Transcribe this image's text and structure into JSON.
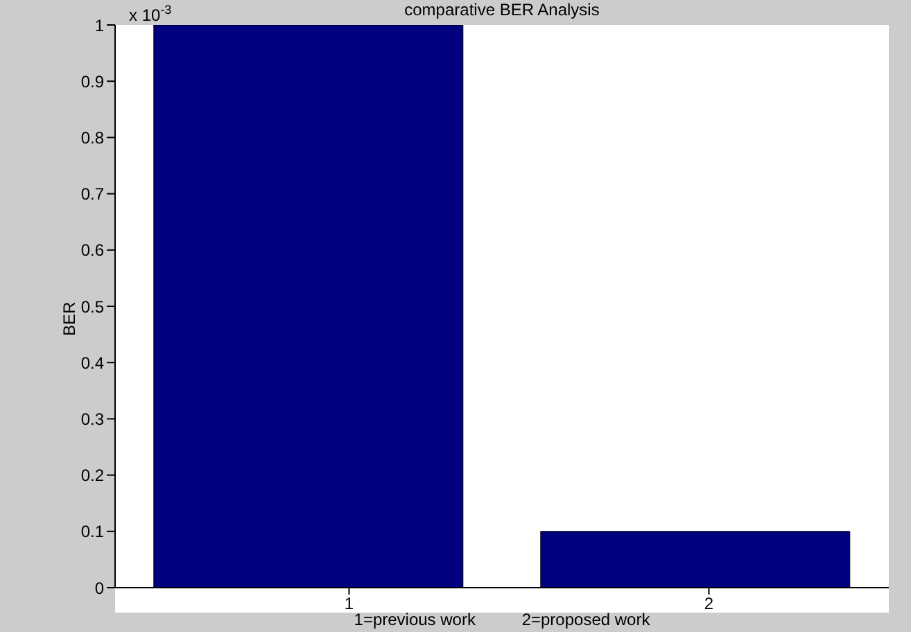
{
  "chart_data": {
    "type": "bar",
    "title": "comparative BER Analysis",
    "xlabel": "1=previous work          2=proposed work",
    "ylabel": "BER",
    "categories": [
      "1",
      "2"
    ],
    "values": [
      1,
      0.1
    ],
    "color": "#00007f",
    "ylim": [
      0,
      1
    ],
    "yticks": [
      0,
      0.1,
      0.2,
      0.3,
      0.4,
      0.5,
      0.6,
      0.7,
      0.8,
      0.9,
      1
    ],
    "annotations": [
      "x 10$^{-3}$"
    ]
  }
}
